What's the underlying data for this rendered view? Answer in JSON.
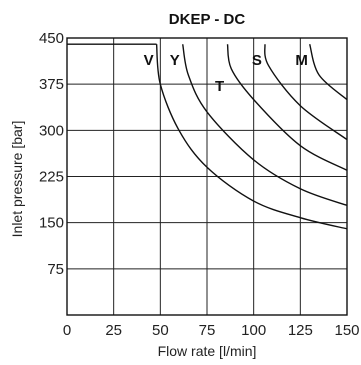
{
  "chart_data": {
    "type": "line",
    "title": "DKEP - DC",
    "xlabel": "Flow rate [l/min]",
    "ylabel": "Inlet pressure [bar]",
    "xlim": [
      0,
      150
    ],
    "ylim": [
      0,
      450
    ],
    "xticks": [
      0,
      25,
      50,
      75,
      100,
      125,
      150
    ],
    "yticks": [
      75,
      150,
      225,
      300,
      375,
      450
    ],
    "grid": true,
    "max_pressure": 440,
    "series": [
      {
        "name": "V",
        "points": [
          [
            48,
            440
          ],
          [
            50,
            375
          ],
          [
            60,
            300
          ],
          [
            75,
            240
          ],
          [
            100,
            185
          ],
          [
            125,
            158
          ],
          [
            150,
            140
          ]
        ]
      },
      {
        "name": "Y",
        "points": [
          [
            62,
            440
          ],
          [
            65,
            390
          ],
          [
            75,
            330
          ],
          [
            100,
            252
          ],
          [
            125,
            205
          ],
          [
            150,
            178
          ]
        ]
      },
      {
        "name": "T",
        "points": [
          [
            86,
            440
          ],
          [
            88,
            400
          ],
          [
            100,
            350
          ],
          [
            125,
            275
          ],
          [
            150,
            235
          ]
        ]
      },
      {
        "name": "S",
        "points": [
          [
            106,
            440
          ],
          [
            108,
            405
          ],
          [
            125,
            340
          ],
          [
            150,
            285
          ]
        ]
      },
      {
        "name": "M",
        "points": [
          [
            130,
            440
          ],
          [
            135,
            390
          ],
          [
            150,
            350
          ]
        ]
      }
    ]
  }
}
